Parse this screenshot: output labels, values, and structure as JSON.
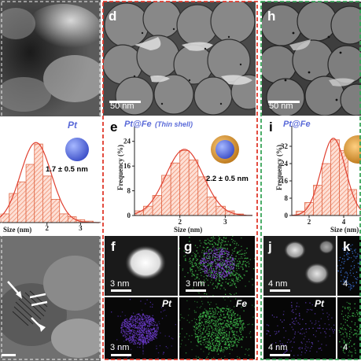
{
  "panels": {
    "d": {
      "letter": "d",
      "scale": "50 nm"
    },
    "h": {
      "letter": "h",
      "scale": "50 nm"
    },
    "e": {
      "letter": "e",
      "title": "Pt@Fe",
      "subtitle": "(Thin shell)",
      "size_label": "2.2 ± 0.5 nm"
    },
    "i": {
      "letter": "i",
      "title": "Pt@Fe"
    },
    "left_hist": {
      "title": "Pt",
      "size_label": "1.7 ± 0.5 nm"
    },
    "f": {
      "letter": "f",
      "scale": "3 nm"
    },
    "g": {
      "letter": "g",
      "scale": "3 nm"
    },
    "pt_map_mid": {
      "label": "Pt",
      "scale": "3 nm"
    },
    "fe_map_mid": {
      "label": "Fe"
    },
    "j": {
      "letter": "j",
      "scale": "4 nm"
    },
    "k": {
      "letter": "k",
      "scale": "4"
    },
    "pt_map_right": {
      "label": "Pt",
      "scale": "4 nm"
    },
    "right_bottom_scale": "4"
  },
  "colors": {
    "red_frame": "#e0392b",
    "green_frame": "#3aa55a",
    "bar": "#f08a6a",
    "fit": "#e04030",
    "pt_map": "#6a3ac8",
    "fe_map": "#3fb84a"
  },
  "chart_data": [
    {
      "type": "bar",
      "title": "",
      "xlabel": "Size (nm)",
      "ylabel": "",
      "xticks": [
        "2",
        "3"
      ],
      "x": [
        0.75,
        1.0,
        1.25,
        1.5,
        1.75,
        2.0,
        2.25,
        2.5,
        2.75,
        3.0,
        3.25
      ],
      "values": [
        3,
        10,
        14,
        20,
        27,
        16,
        8,
        3,
        2,
        1,
        0.5
      ],
      "xlim": [
        0.6,
        3.6
      ],
      "ylim": [
        0,
        30
      ]
    },
    {
      "type": "bar",
      "title": "",
      "xlabel": "Size (nm)",
      "ylabel": "Frequency (%)",
      "xticks": [
        "2",
        "3"
      ],
      "yticks": [
        "0",
        "8",
        "16",
        "24"
      ],
      "x": [
        1.1,
        1.3,
        1.5,
        1.7,
        1.9,
        2.1,
        2.3,
        2.5,
        2.7,
        2.9,
        3.1,
        3.3
      ],
      "values": [
        1.5,
        3,
        6.5,
        13,
        17,
        21,
        18,
        12.5,
        6,
        3,
        1.5,
        0.5
      ],
      "xlim": [
        1.0,
        3.6
      ],
      "ylim": [
        0,
        28
      ]
    },
    {
      "type": "bar",
      "title": "",
      "xlabel": "Size (nm)",
      "ylabel": "Frequency (%)",
      "xticks": [
        "2",
        "4"
      ],
      "yticks": [
        "0",
        "8",
        "16",
        "24",
        "32"
      ],
      "x": [
        1.5,
        2.0,
        2.5,
        3.0,
        3.5,
        4.0,
        4.5
      ],
      "values": [
        2,
        6,
        14,
        24,
        35,
        30,
        12
      ],
      "xlim": [
        1.0,
        5.0
      ],
      "ylim": [
        0,
        40
      ]
    }
  ]
}
